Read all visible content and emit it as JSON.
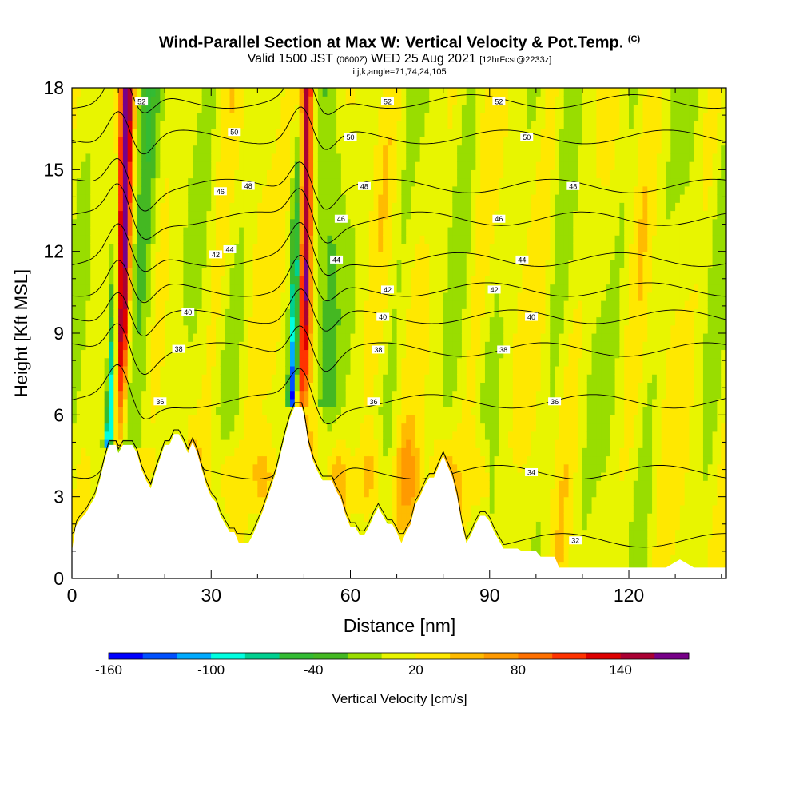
{
  "title": {
    "main": "Wind-Parallel Section at Max W: Vertical Velocity & Pot.Temp.",
    "main_suffix": "(C)",
    "line2_a": "Valid 1500 JST",
    "line2_b": "(0600Z)",
    "line2_c": "WED 25 Aug 2021",
    "line2_d": "[12hrFcst@2233z]",
    "line3": "i,j,k,angle=71,74,24,105"
  },
  "chart_data": {
    "type": "heatmap",
    "xlabel": "Distance [nm]",
    "ylabel": "Height [Kft MSL]",
    "xlim": [
      0,
      141
    ],
    "ylim": [
      0,
      18
    ],
    "xticks": [
      0,
      30,
      60,
      90,
      120
    ],
    "yticks": [
      0,
      3,
      6,
      9,
      12,
      15,
      18
    ],
    "colorbar": {
      "label": "Vertical Velocity [cm/s]",
      "tick_labels": [
        -160,
        -100,
        -40,
        20,
        80,
        140
      ],
      "levels": [
        -160,
        -140,
        -120,
        -100,
        -80,
        -60,
        -40,
        -20,
        0,
        20,
        40,
        60,
        80,
        100,
        120,
        140,
        160
      ],
      "colors": [
        "#0000ff",
        "#0050ff",
        "#00aaff",
        "#00ffe0",
        "#00d090",
        "#33bb33",
        "#44b822",
        "#99dd00",
        "#e8f500",
        "#ffe800",
        "#ffbb00",
        "#ff9a00",
        "#ff7000",
        "#ff3300",
        "#dd0000",
        "#aa0033",
        "#770088"
      ]
    },
    "terrain": [
      [
        0,
        1
      ],
      [
        0.8,
        1.9
      ],
      [
        1.5,
        2.1
      ],
      [
        3,
        2.4
      ],
      [
        4,
        2.7
      ],
      [
        5,
        3.0
      ],
      [
        6,
        3.6
      ],
      [
        7,
        4.3
      ],
      [
        8,
        4.9
      ],
      [
        9.5,
        4.9
      ],
      [
        10,
        4.6
      ],
      [
        11,
        4.9
      ],
      [
        13,
        4.9
      ],
      [
        14,
        4.6
      ],
      [
        15,
        4.0
      ],
      [
        16,
        3.6
      ],
      [
        17,
        3.3
      ],
      [
        18,
        3.9
      ],
      [
        19,
        4.4
      ],
      [
        20,
        4.9
      ],
      [
        21,
        4.9
      ],
      [
        22,
        5.3
      ],
      [
        23,
        5.3
      ],
      [
        24,
        5.0
      ],
      [
        25,
        4.6
      ],
      [
        26,
        5.0
      ],
      [
        27,
        4.6
      ],
      [
        28,
        4.0
      ],
      [
        29,
        3.4
      ],
      [
        30,
        3.0
      ],
      [
        31,
        2.8
      ],
      [
        32,
        2.3
      ],
      [
        33,
        2.0
      ],
      [
        34,
        1.7
      ],
      [
        35,
        1.7
      ],
      [
        36,
        1.3
      ],
      [
        38,
        1.3
      ],
      [
        39,
        1.6
      ],
      [
        40,
        2.0
      ],
      [
        41,
        2.4
      ],
      [
        42,
        2.9
      ],
      [
        43,
        3.4
      ],
      [
        44,
        3.9
      ],
      [
        45,
        4.6
      ],
      [
        46,
        5.3
      ],
      [
        47,
        5.9
      ],
      [
        48,
        6.3
      ],
      [
        49.5,
        6.3
      ],
      [
        50,
        6.0
      ],
      [
        51,
        4.9
      ],
      [
        52,
        4.3
      ],
      [
        53,
        3.9
      ],
      [
        54,
        3.6
      ],
      [
        56,
        3.6
      ],
      [
        57,
        3.2
      ],
      [
        58,
        2.9
      ],
      [
        59,
        2.3
      ],
      [
        60,
        1.9
      ],
      [
        61,
        1.9
      ],
      [
        62,
        1.6
      ],
      [
        63,
        1.6
      ],
      [
        64,
        1.9
      ],
      [
        65,
        2.3
      ],
      [
        66,
        2.6
      ],
      [
        67,
        2.3
      ],
      [
        68,
        2.0
      ],
      [
        69,
        2.0
      ],
      [
        70,
        1.7
      ],
      [
        71,
        1.3
      ],
      [
        72,
        1.7
      ],
      [
        73,
        2.0
      ],
      [
        74,
        2.7
      ],
      [
        75,
        3.0
      ],
      [
        76,
        3.4
      ],
      [
        77,
        3.7
      ],
      [
        78,
        3.7
      ],
      [
        79,
        4.1
      ],
      [
        80,
        4.5
      ],
      [
        81,
        4.1
      ],
      [
        82,
        3.7
      ],
      [
        83,
        3.0
      ],
      [
        84,
        2.0
      ],
      [
        85,
        1.3
      ],
      [
        86,
        1.6
      ],
      [
        87,
        2.0
      ],
      [
        88,
        2.3
      ],
      [
        89,
        2.3
      ],
      [
        90,
        2.1
      ],
      [
        91,
        1.7
      ],
      [
        92,
        1.4
      ],
      [
        93,
        1.1
      ],
      [
        96,
        1.1
      ],
      [
        97,
        1.0
      ],
      [
        100,
        1.0
      ],
      [
        101,
        0.8
      ],
      [
        104,
        0.8
      ],
      [
        105,
        0.4
      ],
      [
        106,
        0.4
      ],
      [
        107,
        0.4
      ],
      [
        110,
        0.4
      ],
      [
        112,
        0.4
      ],
      [
        114,
        0.4
      ],
      [
        116,
        0.4
      ],
      [
        118,
        0.4
      ],
      [
        121,
        0.4
      ],
      [
        122,
        0.4
      ],
      [
        127,
        0.4
      ],
      [
        128,
        0.4
      ],
      [
        130,
        0.6
      ],
      [
        131,
        0.7
      ],
      [
        133,
        0.5
      ],
      [
        134,
        0.4
      ],
      [
        136,
        0.4
      ],
      [
        141,
        0.4
      ]
    ],
    "updrafts": [
      {
        "x_base": 9.5,
        "y_base": 4.9,
        "x_top": 11.5,
        "y_top": 18,
        "w_max": 150,
        "w_min": -130
      },
      {
        "x_base": 49,
        "y_base": 6.3,
        "x_top": 50.5,
        "y_top": 18,
        "w_max": 165,
        "w_min": -160
      }
    ],
    "theta_contours": [
      {
        "label": "32",
        "y": 1.4,
        "label_x": 108.5
      },
      {
        "label": "34",
        "y": 3.9,
        "label_x": 99
      },
      {
        "label": "36",
        "y": 6.5,
        "label_x": 19,
        "label_x2": 65,
        "label_x3": 104
      },
      {
        "label": "38",
        "y": 8.4,
        "label_x": 23,
        "label_x2": 66,
        "label_x3": 93
      },
      {
        "label": "40",
        "y": 9.6,
        "label_x": 25,
        "label_x2": 67,
        "label_x3": 99
      },
      {
        "label": "42",
        "y": 10.6,
        "label_x": 31,
        "label_x2": 68,
        "label_x3": 91
      },
      {
        "label": "44",
        "y": 11.7,
        "label_x": 34,
        "label_x2": 57,
        "label_x3": 97
      },
      {
        "label": "46",
        "y": 13.2,
        "label_x": 32,
        "label_x2": 58,
        "label_x3": 92
      },
      {
        "label": "48",
        "y": 14.4,
        "label_x": 38,
        "label_x2": 63,
        "label_x3": 108
      },
      {
        "label": "50",
        "y": 16.2,
        "label_x": 35,
        "label_x2": 60,
        "label_x3": 98
      },
      {
        "label": "52",
        "y": 17.5,
        "label_x": 15,
        "label_x2": 68,
        "label_x3": 92
      }
    ]
  }
}
